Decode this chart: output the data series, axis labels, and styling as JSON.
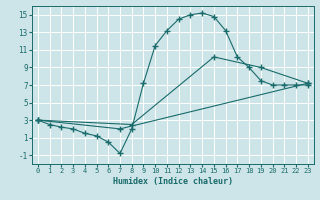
{
  "xlabel": "Humidex (Indice chaleur)",
  "bg_color": "#cde4e8",
  "grid_color": "#ffffff",
  "line_color": "#1a6b6b",
  "xlim": [
    -0.5,
    23.5
  ],
  "ylim": [
    -2.0,
    16.0
  ],
  "xticks": [
    0,
    1,
    2,
    3,
    4,
    5,
    6,
    7,
    8,
    9,
    10,
    11,
    12,
    13,
    14,
    15,
    16,
    17,
    18,
    19,
    20,
    21,
    22,
    23
  ],
  "yticks": [
    -1,
    1,
    3,
    5,
    7,
    9,
    11,
    13,
    15
  ],
  "line1_x": [
    0,
    1,
    2,
    3,
    4,
    5,
    6,
    7,
    8,
    9,
    10,
    11,
    12,
    13,
    14,
    15,
    16,
    17,
    18,
    19,
    20,
    21,
    22,
    23
  ],
  "line1_y": [
    3,
    2.5,
    2.2,
    2.0,
    1.5,
    1.2,
    0.5,
    -0.8,
    2.0,
    7.2,
    11.5,
    13.2,
    14.5,
    15.0,
    15.2,
    14.8,
    13.2,
    10.2,
    9.0,
    7.5,
    7.0,
    7.0,
    7.0,
    7.0
  ],
  "line2_x": [
    0,
    7,
    23
  ],
  "line2_y": [
    3,
    2.0,
    7.2
  ],
  "line3_x": [
    0,
    8,
    15,
    19,
    23
  ],
  "line3_y": [
    3,
    2.5,
    10.2,
    9.0,
    7.2
  ]
}
